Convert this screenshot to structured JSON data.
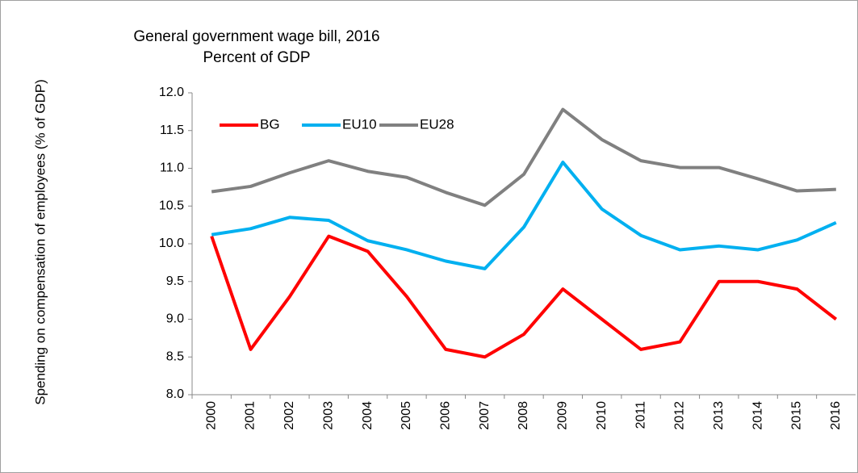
{
  "chart_data": {
    "type": "line",
    "title": "General government wage bill, 2016",
    "subtitle": "Percent of GDP",
    "ylabel": "Spending on compensation of employees (% of GDP)",
    "categories": [
      "2000",
      "2001",
      "2002",
      "2003",
      "2004",
      "2005",
      "2006",
      "2007",
      "2008",
      "2009",
      "2010",
      "2011",
      "2012",
      "2013",
      "2014",
      "2015",
      "2016"
    ],
    "series": [
      {
        "name": "BG",
        "color": "#ff0000",
        "values": [
          10.1,
          8.6,
          9.3,
          10.1,
          9.9,
          9.3,
          8.6,
          8.5,
          8.8,
          9.4,
          9.0,
          8.6,
          8.7,
          9.5,
          9.5,
          9.4,
          9.0
        ]
      },
      {
        "name": "EU10",
        "color": "#00b0f0",
        "values": [
          10.12,
          10.2,
          10.35,
          10.31,
          10.04,
          9.92,
          9.77,
          9.67,
          10.22,
          11.08,
          10.46,
          10.11,
          9.92,
          9.97,
          9.92,
          10.05,
          10.28
        ]
      },
      {
        "name": "EU28",
        "color": "#808080",
        "values": [
          10.69,
          10.76,
          10.94,
          11.1,
          10.96,
          10.88,
          10.68,
          10.51,
          10.92,
          11.78,
          11.38,
          11.1,
          11.01,
          11.01,
          10.86,
          10.7,
          10.72
        ]
      }
    ],
    "ylim": [
      8,
      12
    ],
    "yticks": [
      {
        "value": 8,
        "label": "8.0"
      },
      {
        "value": 8.5,
        "label": "8.5"
      },
      {
        "value": 9,
        "label": "9.0"
      },
      {
        "value": 9.5,
        "label": "9.5"
      },
      {
        "value": 10,
        "label": "10.0"
      },
      {
        "value": 10.5,
        "label": "10.5"
      },
      {
        "value": 11,
        "label": "11.0"
      },
      {
        "value": 11.5,
        "label": "11.5"
      },
      {
        "value": 12,
        "label": "12.0"
      }
    ],
    "grid": false,
    "legend": "top-left"
  }
}
